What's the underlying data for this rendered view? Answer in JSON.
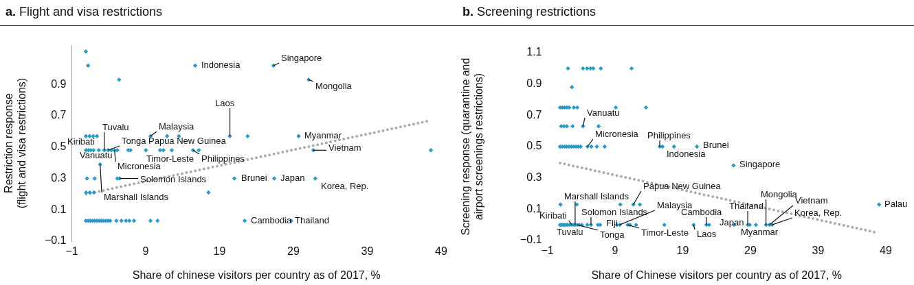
{
  "chart_data": [
    {
      "type": "scatter",
      "title": "a. Flight and visa restrictions",
      "xlabel": "Share of chinese visitors per country as of 2017, %",
      "ylabel": "Restriction response\n(flight and visa restrictions)",
      "xlim": [
        -1,
        49
      ],
      "ylim": [
        -0.1,
        1.15
      ],
      "xticks": [
        -1,
        9,
        19,
        29,
        39,
        49
      ],
      "yticks": [
        -0.1,
        0.1,
        0.3,
        0.5,
        0.7,
        0.9
      ],
      "grid": false,
      "legend": false,
      "marker": "diamond",
      "series": [
        {
          "color": "#2b9ac8",
          "x": [
            0.9,
            1.2,
            15.7,
            26.3,
            5.4,
            31.05,
            0.9,
            1.4,
            1.9,
            2.4,
            9.65,
            11.9,
            13.5,
            20.4,
            22.8,
            29.7,
            0.93,
            1.25,
            1.56,
            1.93,
            2.65,
            3.39,
            3.91,
            4.35,
            4.79,
            5.16,
            6.65,
            6.95,
            9.03,
            10.95,
            11.39,
            12.53,
            15.42,
            16.19,
            31.7,
            47.6,
            2.83,
            1.06,
            2.09,
            5.16,
            5.47,
            21.0,
            26.4,
            31.95,
            0.93,
            1.43,
            1.99,
            17.5,
            0.9,
            1.2,
            1.5,
            1.8,
            2.1,
            2.4,
            2.7,
            3.0,
            3.3,
            3.6,
            3.9,
            4.2,
            5.03,
            5.72,
            6.33,
            6.8,
            7.42,
            9.65,
            10.61,
            22.4,
            28.7
          ],
          "values": [
            1.11,
            1.02,
            1.02,
            1.02,
            0.93,
            0.93,
            0.57,
            0.57,
            0.57,
            0.57,
            0.57,
            0.57,
            0.57,
            0.57,
            0.57,
            0.57,
            0.48,
            0.48,
            0.48,
            0.48,
            0.48,
            0.48,
            0.48,
            0.48,
            0.48,
            0.48,
            0.48,
            0.48,
            0.48,
            0.48,
            0.48,
            0.48,
            0.48,
            0.48,
            0.48,
            0.48,
            0.39,
            0.3,
            0.3,
            0.3,
            0.3,
            0.3,
            0.3,
            0.3,
            0.21,
            0.21,
            0.21,
            0.21,
            0.03,
            0.03,
            0.03,
            0.03,
            0.03,
            0.03,
            0.03,
            0.03,
            0.03,
            0.03,
            0.03,
            0.03,
            0.03,
            0.03,
            0.03,
            0.03,
            0.03,
            0.03,
            0.03,
            0.03,
            0.03
          ]
        },
        {
          "type": "line",
          "color": "#aaaaaa",
          "line_style": "dotted",
          "marker": "none",
          "x": [
            0.93,
            47.6
          ],
          "values": [
            0.2,
            0.67
          ]
        }
      ],
      "annotations": [
        {
          "text": "Indonesia",
          "x": 15.7,
          "y": 1.02
        },
        {
          "text": "Singapore",
          "x": 26.3,
          "y": 1.02
        },
        {
          "text": "Mongolia",
          "x": 31.05,
          "y": 0.93
        },
        {
          "text": "Laos",
          "x": 20.4,
          "y": 0.57
        },
        {
          "text": "Malaysia",
          "x": 9.65,
          "y": 0.57
        },
        {
          "text": "Tuvalu",
          "x": 3.39,
          "y": 0.48
        },
        {
          "text": "Kiribati",
          "x": 2.65,
          "y": 0.48
        },
        {
          "text": "Tonga",
          "x": 3.91,
          "y": 0.48
        },
        {
          "text": "Papua New Guinea",
          "x": 11.39,
          "y": 0.48
        },
        {
          "text": "Vanuatu",
          "x": 1.93,
          "y": 0.48
        },
        {
          "text": "Timor-Leste",
          "x": 10.95,
          "y": 0.48
        },
        {
          "text": "Philippines",
          "x": 15.42,
          "y": 0.48
        },
        {
          "text": "Micronesia",
          "x": 4.79,
          "y": 0.48
        },
        {
          "text": "Solomon Islands",
          "x": 5.47,
          "y": 0.3
        },
        {
          "text": "Marshall Islands",
          "x": 2.83,
          "y": 0.39
        },
        {
          "text": "Myanmar",
          "x": 29.7,
          "y": 0.57
        },
        {
          "text": "Vietnam",
          "x": 31.7,
          "y": 0.48
        },
        {
          "text": "Brunei",
          "x": 21.0,
          "y": 0.3
        },
        {
          "text": "Japan",
          "x": 26.4,
          "y": 0.3
        },
        {
          "text": "Korea, Rep.",
          "x": 31.95,
          "y": 0.3
        },
        {
          "text": "Cambodia",
          "x": 22.4,
          "y": 0.03
        },
        {
          "text": "Thailand",
          "x": 28.7,
          "y": 0.03
        }
      ]
    },
    {
      "type": "scatter",
      "title": "b. Screening restrictions",
      "xlabel": "Share of Chinese visitors per country as of 2017, %",
      "ylabel": "Screening response (quarantine and\nairport screenings restrictions)",
      "xlim": [
        -1,
        49
      ],
      "ylim": [
        -0.1,
        1.1
      ],
      "xticks": [
        -1,
        9,
        19,
        29,
        39,
        49
      ],
      "yticks": [
        -0.1,
        0.1,
        0.3,
        0.5,
        0.7,
        0.9,
        1.1
      ],
      "grid": false,
      "legend": false,
      "marker": "diamond",
      "series": [
        {
          "color": "#2b9ac8",
          "x": [
            2.05,
            4.26,
            4.87,
            5.37,
            5.78,
            6.9,
            11.44,
            2.62,
            0.87,
            1.2,
            1.54,
            1.88,
            2.22,
            2.9,
            3.41,
            9.1,
            13.57,
            1.04,
            1.45,
            1.88,
            2.73,
            4.26,
            6.56,
            0.87,
            1.2,
            1.54,
            1.88,
            2.22,
            2.56,
            2.9,
            3.24,
            3.58,
            3.92,
            4.93,
            5.5,
            6.3,
            7.47,
            15.6,
            16.0,
            17.7,
            21.1,
            26.5,
            0.94,
            3.35,
            9.78,
            11.71,
            12.66,
            48.0,
            0.87,
            1.0,
            1.2,
            1.4,
            1.6,
            1.8,
            2.0,
            2.3,
            2.6,
            2.9,
            3.1,
            3.4,
            3.7,
            4.1,
            4.9,
            5.44,
            6.46,
            6.8,
            9.27,
            9.68,
            10.86,
            11.2,
            12.1,
            16.28,
            20.6,
            22.5,
            22.9,
            26.6,
            28.6,
            28.9,
            29.8,
            31.3,
            31.8,
            32.2
          ],
          "values": [
            1.0,
            1.0,
            1.0,
            1.0,
            1.0,
            1.0,
            1.0,
            0.88,
            0.75,
            0.75,
            0.75,
            0.75,
            0.75,
            0.75,
            0.75,
            0.75,
            0.75,
            0.63,
            0.63,
            0.63,
            0.63,
            0.63,
            0.63,
            0.5,
            0.5,
            0.5,
            0.5,
            0.5,
            0.5,
            0.5,
            0.5,
            0.5,
            0.5,
            0.5,
            0.5,
            0.5,
            0.5,
            0.5,
            0.5,
            0.5,
            0.5,
            0.38,
            0.13,
            0.13,
            0.13,
            0.13,
            0.13,
            0.13,
            0.0,
            0.0,
            0.0,
            0.0,
            0.0,
            0.0,
            0.0,
            0.0,
            0.0,
            0.0,
            0.0,
            0.0,
            0.0,
            0.0,
            0.0,
            0.0,
            0.0,
            0.0,
            0.0,
            0.0,
            0.0,
            0.0,
            0.0,
            0.0,
            0.0,
            0.0,
            0.0,
            0.0,
            0.0,
            0.0,
            0.0,
            0.0,
            0.0,
            0.0
          ]
        },
        {
          "type": "line",
          "color": "#aaaaaa",
          "line_style": "dotted",
          "marker": "none",
          "x": [
            0.88,
            47.7
          ],
          "values": [
            0.395,
            -0.05
          ]
        }
      ],
      "annotations": [
        {
          "text": "Vanuatu",
          "x": 4.26,
          "y": 0.63
        },
        {
          "text": "Micronesia",
          "x": 4.93,
          "y": 0.5
        },
        {
          "text": "Philippines",
          "x": 15.6,
          "y": 0.5
        },
        {
          "text": "Indonesia",
          "x": 16.0,
          "y": 0.5
        },
        {
          "text": "Papua New Guinea",
          "x": 11.71,
          "y": 0.13
        },
        {
          "text": "Marshall Islands",
          "x": 3.1,
          "y": 0.0
        },
        {
          "text": "Malaysia",
          "x": 9.68,
          "y": 0.0
        },
        {
          "text": "Solomon Islands",
          "x": 5.44,
          "y": 0.0
        },
        {
          "text": "Kiribati",
          "x": 2.6,
          "y": 0.0
        },
        {
          "text": "Fiji",
          "x": 9.27,
          "y": 0.0
        },
        {
          "text": "Tuvalu",
          "x": 2.9,
          "y": 0.0
        },
        {
          "text": "Tonga",
          "x": 3.4,
          "y": 0.0
        },
        {
          "text": "Timor-Leste",
          "x": 10.86,
          "y": 0.0
        },
        {
          "text": "Brunei",
          "x": 21.1,
          "y": 0.5
        },
        {
          "text": "Singapore",
          "x": 26.5,
          "y": 0.38
        },
        {
          "text": "Mongolia",
          "x": 31.3,
          "y": 0.0
        },
        {
          "text": "Vietnam",
          "x": 31.8,
          "y": 0.0
        },
        {
          "text": "Thailand",
          "x": 28.6,
          "y": 0.0
        },
        {
          "text": "Korea, Rep.",
          "x": 32.2,
          "y": 0.0
        },
        {
          "text": "Cambodia",
          "x": 22.5,
          "y": 0.0
        },
        {
          "text": "Japan",
          "x": 26.6,
          "y": 0.0
        },
        {
          "text": "Myanmar",
          "x": 29.8,
          "y": 0.0
        },
        {
          "text": "Laos",
          "x": 20.6,
          "y": 0.0
        },
        {
          "text": "Palau",
          "x": 48.0,
          "y": 0.13
        }
      ]
    }
  ]
}
